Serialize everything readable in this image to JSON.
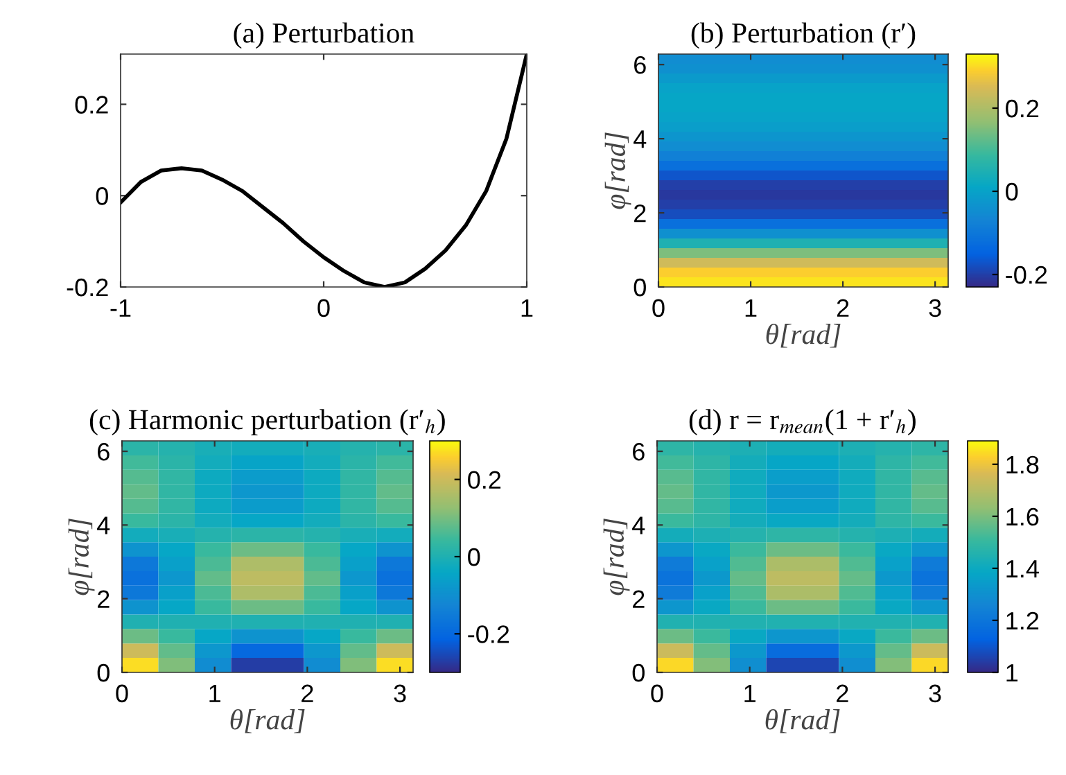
{
  "chart_data": [
    {
      "type": "line",
      "title": "(a) Perturbation",
      "x": [
        -1,
        -0.9,
        -0.8,
        -0.7,
        -0.6,
        -0.5,
        -0.4,
        -0.3,
        -0.2,
        -0.1,
        0,
        0.1,
        0.2,
        0.3,
        0.4,
        0.5,
        0.6,
        0.7,
        0.8,
        0.9,
        1
      ],
      "series": [
        {
          "color": "#000000",
          "values": [
            -0.015,
            0.03,
            0.055,
            0.06,
            0.055,
            0.035,
            0.01,
            -0.025,
            -0.06,
            -0.1,
            -0.135,
            -0.165,
            -0.19,
            -0.2,
            -0.19,
            -0.16,
            -0.12,
            -0.065,
            0.01,
            0.125,
            0.31
          ]
        }
      ],
      "xlim": [
        -1,
        1
      ],
      "ylim": [
        -0.2,
        0.31
      ],
      "xticks": [
        -1,
        0,
        1
      ],
      "yticks": [
        -0.2,
        0,
        0.2
      ],
      "grid": false
    },
    {
      "type": "heatmap",
      "title": "(b) Perturbation (r′)",
      "xlabel": "θ[rad]",
      "ylabel": "φ[rad]",
      "cells": [
        [
          -0.05
        ],
        [
          -0.04
        ],
        [
          -0.02
        ],
        [
          0.0
        ],
        [
          0.01
        ],
        [
          0.01
        ],
        [
          0.0
        ],
        [
          -0.01
        ],
        [
          -0.03
        ],
        [
          -0.05
        ],
        [
          -0.08
        ],
        [
          -0.12
        ],
        [
          -0.17
        ],
        [
          -0.2
        ],
        [
          -0.21
        ],
        [
          -0.2
        ],
        [
          -0.18
        ],
        [
          -0.12
        ],
        [
          -0.04
        ],
        [
          0.05
        ],
        [
          0.15
        ],
        [
          0.24
        ],
        [
          0.29
        ],
        [
          0.31
        ]
      ],
      "xlim": [
        0,
        3.1416
      ],
      "ylim": [
        0,
        6.2832
      ],
      "xticks": [
        0,
        1,
        2,
        3
      ],
      "yticks": [
        0,
        2,
        4,
        6
      ],
      "clim": [
        -0.23,
        0.33
      ],
      "cticks": [
        -0.2,
        0,
        0.2
      ]
    },
    {
      "type": "heatmap",
      "title": "(c) Harmonic perturbation (r′$_{h}$)",
      "xlabel": "θ[rad]",
      "ylabel": "φ[rad]",
      "cells": [
        [
          0.02,
          0.01,
          -0.01,
          -0.02,
          -0.02,
          -0.01,
          0.01,
          0.02
        ],
        [
          0.05,
          0.02,
          -0.02,
          -0.05,
          -0.05,
          -0.02,
          0.02,
          0.05
        ],
        [
          0.07,
          0.03,
          -0.03,
          -0.07,
          -0.07,
          -0.03,
          0.03,
          0.07
        ],
        [
          0.08,
          0.03,
          -0.03,
          -0.08,
          -0.08,
          -0.03,
          0.03,
          0.08
        ],
        [
          0.07,
          0.03,
          -0.03,
          -0.07,
          -0.07,
          -0.03,
          0.03,
          0.07
        ],
        [
          0.04,
          0.02,
          -0.02,
          -0.04,
          -0.04,
          -0.02,
          0.02,
          0.04
        ],
        [
          -0.02,
          -0.01,
          0.01,
          0.02,
          0.02,
          0.01,
          -0.01,
          -0.02
        ],
        [
          -0.09,
          -0.04,
          0.04,
          0.09,
          0.09,
          0.04,
          -0.04,
          -0.09
        ],
        [
          -0.16,
          -0.06,
          0.06,
          0.16,
          0.16,
          0.06,
          -0.06,
          -0.16
        ],
        [
          -0.18,
          -0.08,
          0.08,
          0.18,
          0.18,
          0.08,
          -0.08,
          -0.18
        ],
        [
          -0.16,
          -0.06,
          0.06,
          0.16,
          0.16,
          0.06,
          -0.06,
          -0.16
        ],
        [
          -0.09,
          -0.04,
          0.04,
          0.09,
          0.09,
          0.04,
          -0.04,
          -0.09
        ],
        [
          0.0,
          0.0,
          0.0,
          0.0,
          0.0,
          0.0,
          0.0,
          0.0
        ],
        [
          0.09,
          0.04,
          -0.04,
          -0.09,
          -0.09,
          -0.04,
          0.04,
          0.09
        ],
        [
          0.2,
          0.08,
          -0.08,
          -0.2,
          -0.2,
          -0.08,
          0.08,
          0.2
        ],
        [
          0.27,
          0.11,
          -0.11,
          -0.27,
          -0.27,
          -0.11,
          0.11,
          0.27
        ]
      ],
      "xlim": [
        0,
        3.1416
      ],
      "ylim": [
        0,
        6.2832
      ],
      "xticks": [
        0,
        1,
        2,
        3
      ],
      "yticks": [
        0,
        2,
        4,
        6
      ],
      "clim": [
        -0.3,
        0.3
      ],
      "cticks": [
        -0.2,
        0,
        0.2
      ]
    },
    {
      "type": "heatmap",
      "title": "(d) r = r$_{mean}$(1 + r′$_{h}$)",
      "xlabel": "θ[rad]",
      "ylabel": "φ[rad]",
      "cells": [
        [
          1.48,
          1.46,
          1.44,
          1.42,
          1.42,
          1.44,
          1.46,
          1.48
        ],
        [
          1.52,
          1.48,
          1.42,
          1.38,
          1.38,
          1.42,
          1.48,
          1.52
        ],
        [
          1.55,
          1.49,
          1.41,
          1.35,
          1.35,
          1.41,
          1.49,
          1.55
        ],
        [
          1.57,
          1.49,
          1.41,
          1.33,
          1.33,
          1.41,
          1.49,
          1.57
        ],
        [
          1.55,
          1.49,
          1.41,
          1.35,
          1.35,
          1.41,
          1.49,
          1.55
        ],
        [
          1.51,
          1.48,
          1.42,
          1.39,
          1.39,
          1.42,
          1.48,
          1.51
        ],
        [
          1.42,
          1.44,
          1.46,
          1.48,
          1.48,
          1.46,
          1.44,
          1.42
        ],
        [
          1.32,
          1.39,
          1.51,
          1.58,
          1.58,
          1.51,
          1.39,
          1.32
        ],
        [
          1.22,
          1.36,
          1.54,
          1.68,
          1.68,
          1.54,
          1.36,
          1.22
        ],
        [
          1.19,
          1.33,
          1.57,
          1.71,
          1.71,
          1.57,
          1.33,
          1.19
        ],
        [
          1.22,
          1.36,
          1.54,
          1.68,
          1.68,
          1.54,
          1.36,
          1.22
        ],
        [
          1.32,
          1.39,
          1.51,
          1.58,
          1.58,
          1.51,
          1.39,
          1.32
        ],
        [
          1.45,
          1.45,
          1.45,
          1.45,
          1.45,
          1.45,
          1.45,
          1.45
        ],
        [
          1.58,
          1.51,
          1.39,
          1.32,
          1.32,
          1.39,
          1.51,
          1.58
        ],
        [
          1.74,
          1.57,
          1.33,
          1.16,
          1.16,
          1.33,
          1.57,
          1.74
        ],
        [
          1.84,
          1.61,
          1.29,
          1.06,
          1.06,
          1.29,
          1.61,
          1.84
        ]
      ],
      "xlim": [
        0,
        3.1416
      ],
      "ylim": [
        0,
        6.2832
      ],
      "xticks": [
        0,
        1,
        2,
        3
      ],
      "yticks": [
        0,
        2,
        4,
        6
      ],
      "clim": [
        1,
        1.89
      ],
      "cticks": [
        1,
        1.2,
        1.4,
        1.6,
        1.8
      ]
    }
  ]
}
